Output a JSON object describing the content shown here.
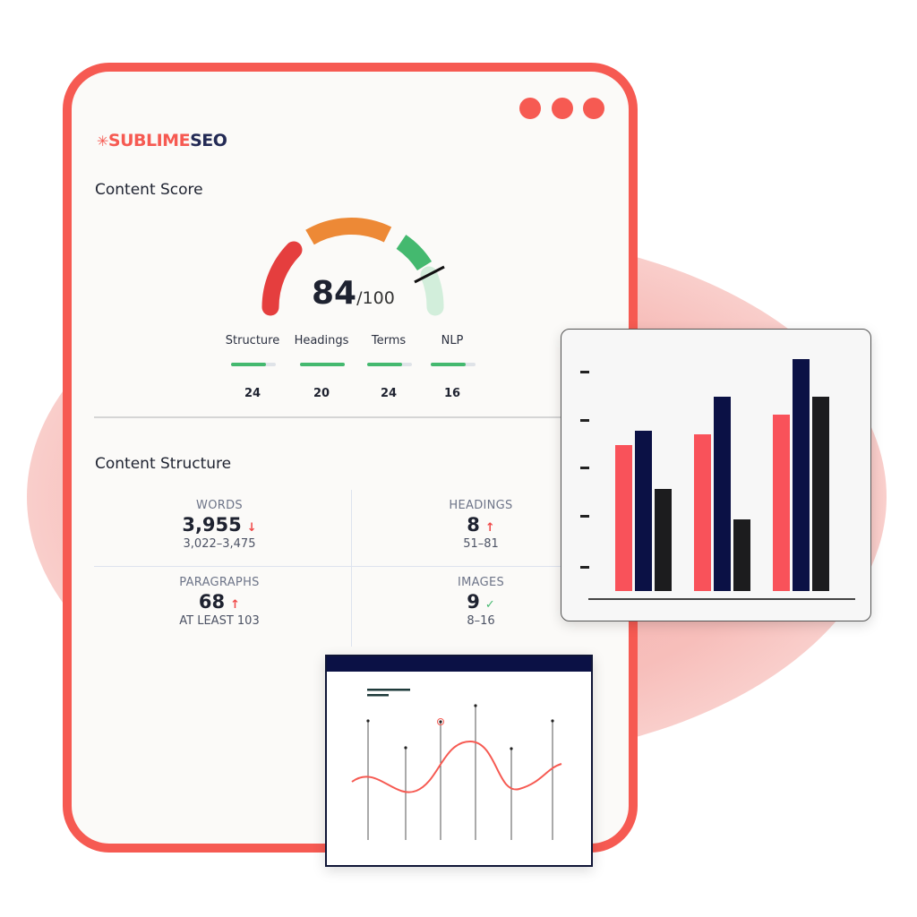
{
  "brand": {
    "part1": "SUBLIME",
    "part2": "SEO",
    "colors": {
      "coral": "#f65a52",
      "navy": "#232a55"
    }
  },
  "content_score": {
    "title": "Content Score",
    "score": "84",
    "max": "/100",
    "value": 84,
    "gauge_colors": [
      "#e53e3e",
      "#ed8936",
      "#44b96f",
      "#d2eedb"
    ],
    "subscores": [
      {
        "label": "Structure",
        "value": "24",
        "fill": 0.78
      },
      {
        "label": "Headings",
        "value": "20",
        "fill": 1.0
      },
      {
        "label": "Terms",
        "value": "24",
        "fill": 0.78
      },
      {
        "label": "NLP",
        "value": "16",
        "fill": 0.78
      }
    ]
  },
  "content_structure": {
    "title": "Content Structure",
    "metrics": [
      {
        "label": "WORDS",
        "value": "3,955",
        "trend": "↓",
        "range": "3,022–3,475",
        "status": "down"
      },
      {
        "label": "HEADINGS",
        "value": "8",
        "trend": "↑",
        "range": "51–81",
        "status": "up"
      },
      {
        "label": "PARAGRAPHS",
        "value": "68",
        "trend": "↑",
        "range": "AT LEAST 103",
        "status": "up"
      },
      {
        "label": "IMAGES",
        "value": "9",
        "trend": "✓",
        "range": "8–16",
        "status": "ok"
      }
    ]
  },
  "chart_data": [
    {
      "type": "bar",
      "series_colors": [
        "#f9525a",
        "#0b1145",
        "#1c1c1e"
      ],
      "groups": [
        [
          163,
          179,
          114
        ],
        [
          175,
          217,
          80
        ],
        [
          197,
          259,
          217
        ]
      ]
    },
    {
      "type": "line",
      "series_colors": [
        "#f65a52"
      ],
      "stems": 6
    }
  ]
}
